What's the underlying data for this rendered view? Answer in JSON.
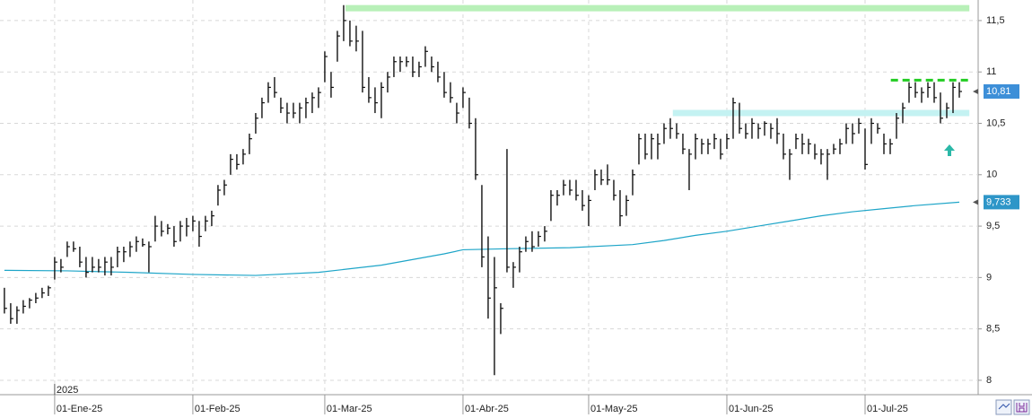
{
  "chart_data": {
    "type": "ohlc",
    "year_label": "2025",
    "ylim": [
      7.86,
      11.7
    ],
    "yticks": [
      {
        "value": 8,
        "label": "8"
      },
      {
        "value": 8.5,
        "label": "8,5"
      },
      {
        "value": 9,
        "label": "9"
      },
      {
        "value": 9.5,
        "label": "9,5"
      },
      {
        "value": 10,
        "label": "10"
      },
      {
        "value": 10.5,
        "label": "10,5"
      },
      {
        "value": 11,
        "label": "11"
      },
      {
        "value": 11.5,
        "label": "11,5"
      }
    ],
    "xlim": [
      -0.7,
      155
    ],
    "xticks": [
      {
        "value": 8,
        "label": "01-Ene-25"
      },
      {
        "value": 30,
        "label": "01-Feb-25"
      },
      {
        "value": 51,
        "label": "01-Mar-25"
      },
      {
        "value": 73,
        "label": "01-Abr-25"
      },
      {
        "value": 93,
        "label": "01-May-25"
      },
      {
        "value": 115,
        "label": "01-Jun-25"
      },
      {
        "value": 137,
        "label": "01-Jul-25"
      }
    ],
    "grid": true,
    "ohlc": {
      "color": "#111111",
      "x": [
        0,
        1,
        2,
        3,
        4,
        5,
        6,
        7,
        8,
        9,
        10,
        11,
        12,
        13,
        14,
        15,
        16,
        17,
        18,
        19,
        20,
        21,
        22,
        23,
        24,
        25,
        26,
        27,
        28,
        29,
        30,
        31,
        32,
        33,
        34,
        35,
        36,
        37,
        38,
        39,
        40,
        41,
        42,
        43,
        44,
        45,
        46,
        47,
        48,
        49,
        50,
        51,
        52,
        53,
        54,
        55,
        56,
        57,
        58,
        59,
        60,
        61,
        62,
        63,
        64,
        65,
        66,
        67,
        68,
        69,
        70,
        71,
        72,
        73,
        74,
        75,
        76,
        77,
        78,
        79,
        80,
        81,
        82,
        83,
        84,
        85,
        86,
        87,
        88,
        89,
        90,
        91,
        92,
        93,
        94,
        95,
        96,
        97,
        98,
        99,
        100,
        101,
        102,
        103,
        104,
        105,
        106,
        107,
        108,
        109,
        110,
        111,
        112,
        113,
        114,
        115,
        116,
        117,
        118,
        119,
        120,
        121,
        122,
        123,
        124,
        125,
        126,
        127,
        128,
        129,
        130,
        131,
        132,
        133,
        134,
        135,
        136,
        137,
        138,
        139,
        140,
        141,
        142,
        143,
        144,
        145,
        146,
        147,
        148,
        149,
        150,
        151,
        152
      ],
      "high": [
        8.9,
        8.75,
        8.72,
        8.78,
        8.8,
        8.85,
        8.9,
        8.92,
        9.2,
        9.18,
        9.35,
        9.35,
        9.3,
        9.2,
        9.2,
        9.18,
        9.2,
        9.2,
        9.3,
        9.3,
        9.35,
        9.4,
        9.38,
        9.35,
        9.6,
        9.55,
        9.52,
        9.5,
        9.55,
        9.58,
        9.6,
        9.55,
        9.6,
        9.65,
        9.9,
        9.95,
        10.2,
        10.2,
        10.25,
        10.4,
        10.6,
        10.75,
        10.9,
        10.95,
        10.75,
        10.7,
        10.7,
        10.7,
        10.75,
        10.8,
        10.85,
        11.2,
        11.0,
        11.4,
        11.65,
        11.5,
        11.45,
        11.4,
        10.95,
        10.85,
        10.9,
        11.0,
        11.15,
        11.15,
        11.15,
        11.15,
        11.1,
        11.25,
        11.15,
        11.1,
        11.0,
        10.9,
        10.7,
        10.85,
        10.75,
        10.55,
        9.9,
        9.4,
        9.2,
        8.75,
        10.25,
        9.15,
        9.3,
        9.4,
        9.45,
        9.45,
        9.5,
        9.85,
        9.85,
        9.95,
        9.95,
        9.95,
        9.85,
        9.8,
        10.05,
        10.05,
        10.1,
        9.95,
        9.85,
        9.8,
        10.05,
        10.4,
        10.4,
        10.4,
        10.4,
        10.5,
        10.55,
        10.5,
        10.4,
        10.25,
        10.4,
        10.35,
        10.35,
        10.4,
        10.35,
        10.4,
        10.75,
        10.7,
        10.5,
        10.55,
        10.5,
        10.52,
        10.5,
        10.55,
        10.4,
        10.25,
        10.4,
        10.4,
        10.35,
        10.3,
        10.25,
        10.25,
        10.3,
        10.35,
        10.5,
        10.5,
        10.55,
        10.45,
        10.55,
        10.5,
        10.4,
        10.35,
        10.6,
        10.7,
        10.9,
        10.9,
        10.85,
        10.9,
        10.9,
        10.8,
        10.7,
        10.9,
        10.9
      ],
      "low": [
        8.65,
        8.55,
        8.55,
        8.65,
        8.7,
        8.75,
        8.8,
        8.82,
        8.98,
        9.05,
        9.2,
        9.25,
        9.1,
        9.0,
        9.05,
        9.05,
        9.02,
        9.02,
        9.1,
        9.15,
        9.2,
        9.25,
        9.3,
        9.05,
        9.35,
        9.4,
        9.42,
        9.3,
        9.35,
        9.4,
        9.45,
        9.3,
        9.45,
        9.5,
        9.7,
        9.8,
        10.0,
        10.05,
        10.1,
        10.2,
        10.4,
        10.55,
        10.7,
        10.75,
        10.6,
        10.5,
        10.55,
        10.5,
        10.55,
        10.6,
        10.65,
        10.9,
        10.75,
        11.1,
        11.3,
        11.25,
        11.2,
        10.8,
        10.7,
        10.6,
        10.55,
        10.8,
        10.95,
        11.0,
        11.05,
        10.95,
        10.95,
        11.05,
        11.0,
        10.9,
        10.75,
        10.7,
        10.5,
        10.65,
        10.45,
        9.95,
        9.1,
        8.6,
        8.05,
        8.45,
        9.05,
        8.9,
        9.05,
        9.25,
        9.25,
        9.3,
        9.35,
        9.55,
        9.7,
        9.8,
        9.8,
        9.75,
        9.65,
        9.5,
        9.85,
        9.9,
        9.9,
        9.75,
        9.5,
        9.6,
        9.8,
        10.1,
        10.15,
        10.15,
        10.15,
        10.3,
        10.35,
        10.35,
        10.2,
        9.85,
        10.15,
        10.2,
        10.2,
        10.25,
        10.15,
        10.25,
        10.35,
        10.4,
        10.35,
        10.35,
        10.35,
        10.38,
        10.35,
        10.3,
        10.15,
        9.95,
        10.25,
        10.2,
        10.2,
        10.15,
        10.1,
        9.95,
        10.2,
        10.2,
        10.3,
        10.3,
        10.4,
        10.05,
        10.3,
        10.4,
        10.2,
        10.2,
        10.35,
        10.5,
        10.7,
        10.75,
        10.7,
        10.75,
        10.7,
        10.5,
        10.55,
        10.6,
        10.75
      ],
      "close": [
        8.7,
        8.6,
        8.68,
        8.72,
        8.78,
        8.8,
        8.85,
        8.9,
        9.15,
        9.1,
        9.3,
        9.28,
        9.15,
        9.05,
        9.1,
        9.1,
        9.15,
        9.1,
        9.25,
        9.25,
        9.3,
        9.35,
        9.32,
        9.3,
        9.5,
        9.45,
        9.48,
        9.35,
        9.5,
        9.5,
        9.55,
        9.4,
        9.55,
        9.6,
        9.85,
        9.9,
        10.15,
        10.1,
        10.2,
        10.35,
        10.55,
        10.7,
        10.85,
        10.8,
        10.65,
        10.6,
        10.6,
        10.65,
        10.7,
        10.75,
        10.8,
        11.15,
        10.85,
        11.35,
        11.5,
        11.3,
        11.3,
        10.85,
        10.75,
        10.7,
        10.85,
        10.95,
        11.1,
        11.1,
        11.1,
        11.0,
        11.05,
        11.2,
        11.05,
        10.95,
        10.8,
        10.75,
        10.6,
        10.8,
        10.5,
        10.0,
        9.2,
        8.8,
        8.9,
        8.7,
        9.1,
        9.1,
        9.25,
        9.35,
        9.3,
        9.4,
        9.45,
        9.8,
        9.8,
        9.9,
        9.85,
        9.8,
        9.7,
        9.75,
        10.0,
        9.95,
        9.95,
        9.8,
        9.6,
        9.75,
        10.0,
        10.35,
        10.2,
        10.35,
        10.3,
        10.45,
        10.45,
        10.4,
        10.25,
        10.2,
        10.35,
        10.3,
        10.3,
        10.35,
        10.2,
        10.35,
        10.7,
        10.45,
        10.4,
        10.5,
        10.45,
        10.5,
        10.45,
        10.4,
        10.2,
        10.2,
        10.35,
        10.3,
        10.3,
        10.2,
        10.2,
        10.2,
        10.25,
        10.3,
        10.45,
        10.4,
        10.5,
        10.1,
        10.5,
        10.45,
        10.3,
        10.3,
        10.55,
        10.65,
        10.85,
        10.8,
        10.8,
        10.85,
        10.75,
        10.55,
        10.65,
        10.85,
        10.81
      ]
    },
    "moving_average": {
      "color": "#1ea5c8",
      "x": [
        0,
        10,
        20,
        30,
        40,
        50,
        60,
        70,
        73,
        80,
        90,
        100,
        105,
        110,
        115,
        120,
        125,
        130,
        135,
        140,
        145,
        152
      ],
      "values": [
        9.07,
        9.065,
        9.05,
        9.03,
        9.02,
        9.05,
        9.12,
        9.23,
        9.27,
        9.28,
        9.29,
        9.32,
        9.36,
        9.41,
        9.45,
        9.5,
        9.55,
        9.6,
        9.64,
        9.67,
        9.7,
        9.733
      ]
    },
    "levels": [
      {
        "value": 11.62,
        "from": 54.3,
        "to": 153.6,
        "color": "#b8f0b8",
        "dashed": false,
        "width": 7
      },
      {
        "value": 10.6,
        "from": 106.4,
        "to": 153.6,
        "color": "#c4f2f2",
        "dashed": false,
        "width": 7
      },
      {
        "value": 10.92,
        "from": 141.1,
        "to": 153.6,
        "color": "#22cc22",
        "dashed": true,
        "width": 3
      }
    ],
    "price_tags": [
      {
        "value": 10.81,
        "label": "10,81",
        "color": "#3d8fd8"
      },
      {
        "value": 9.733,
        "label": "9,733",
        "color": "#2e96c8"
      }
    ]
  }
}
